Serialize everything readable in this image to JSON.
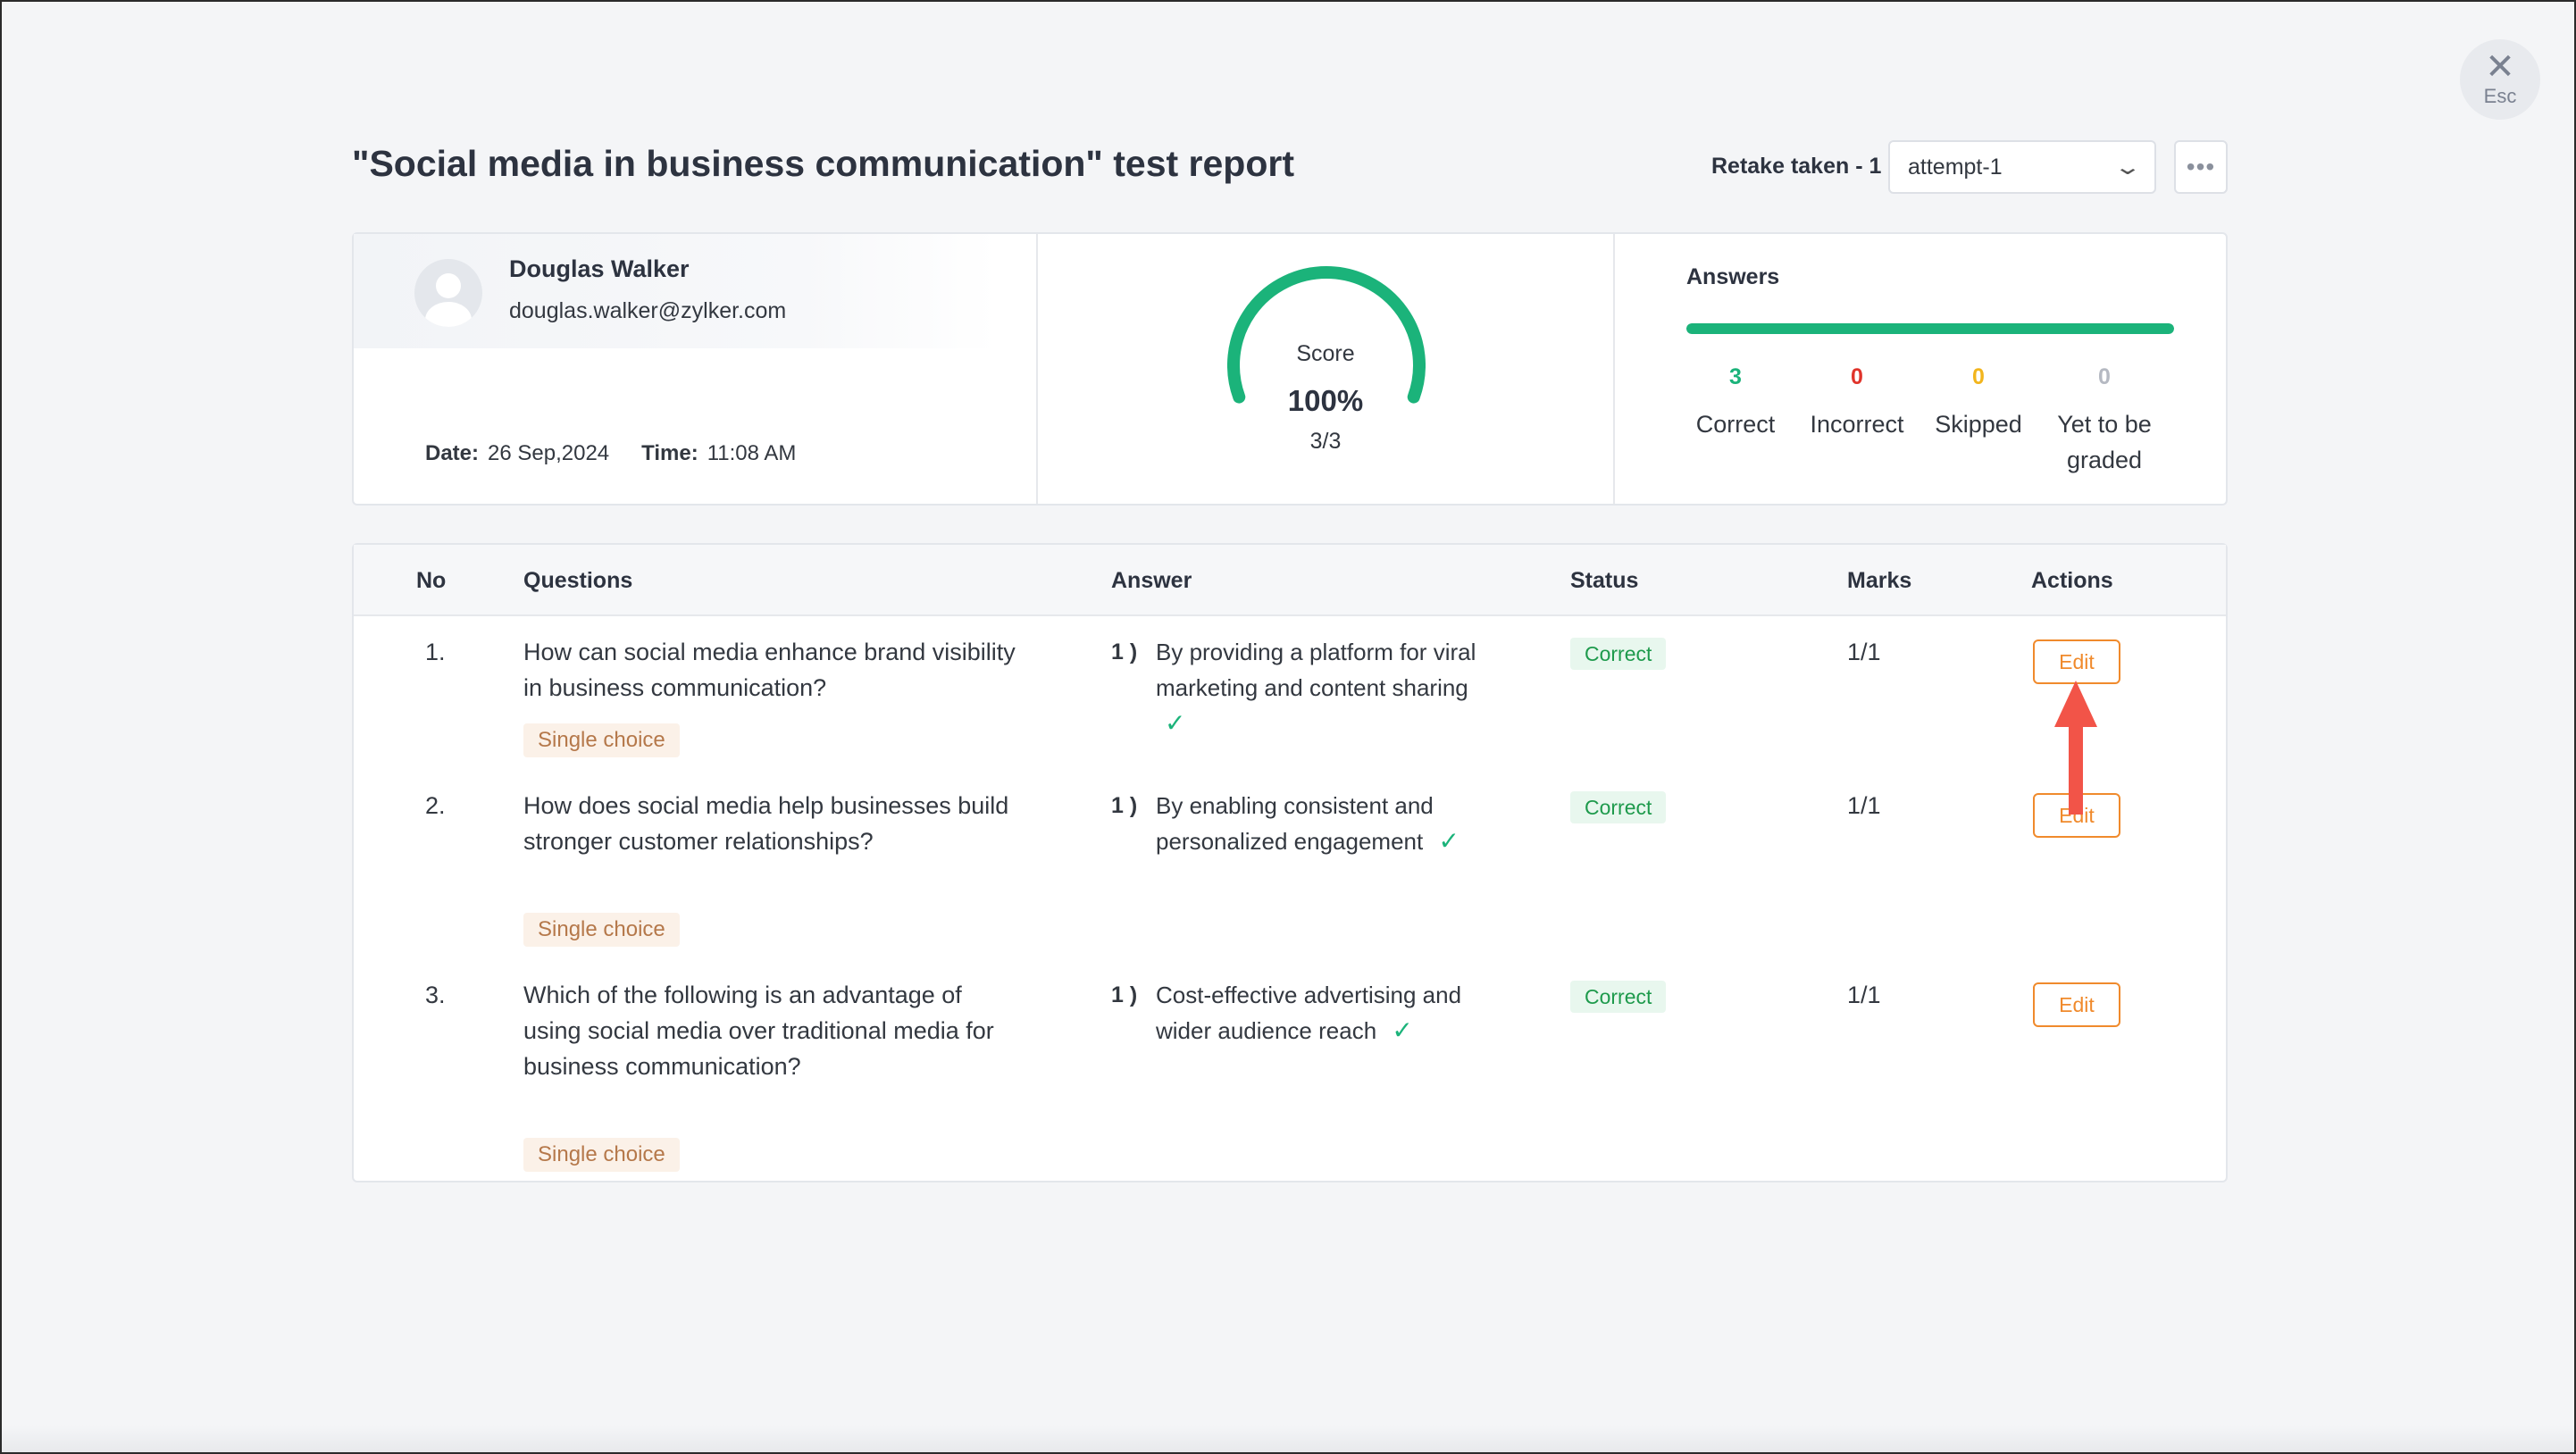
{
  "esc": {
    "label": "Esc"
  },
  "header": {
    "title": "\"Social media in business communication\" test report",
    "retake_label": "Retake taken - 1",
    "attempt_value": "attempt-1"
  },
  "user": {
    "name": "Douglas Walker",
    "email": "douglas.walker@zylker.com",
    "date_label": "Date:",
    "date": "26 Sep,2024",
    "time_label": "Time:",
    "time": "11:08 AM"
  },
  "score": {
    "label": "Score",
    "percent": "100%",
    "fraction": "3/3",
    "fill_fraction": 1.0,
    "color": "#1bb37a"
  },
  "answers": {
    "title": "Answers",
    "correct": {
      "count": "3",
      "label": "Correct",
      "color": "#1bb37a"
    },
    "incorrect": {
      "count": "0",
      "label": "Incorrect",
      "color": "#e0342b"
    },
    "skipped": {
      "count": "0",
      "label": "Skipped",
      "color": "#f2b51d"
    },
    "pending": {
      "count": "0",
      "label": "Yet to be graded",
      "color": "#b5b9c2"
    },
    "bar_fraction": 1.0
  },
  "table": {
    "headers": {
      "no": "No",
      "questions": "Questions",
      "answer": "Answer",
      "status": "Status",
      "marks": "Marks",
      "actions": "Actions"
    },
    "rows": [
      {
        "no": "1.",
        "question": "How can social media enhance brand visibility in business communication?",
        "tag": "Single choice",
        "answer_index": "1 )",
        "answer": "By providing a platform for viral marketing and content sharing",
        "status": "Correct",
        "marks": "1/1",
        "action": "Edit"
      },
      {
        "no": "2.",
        "question": "How does social media help businesses build stronger customer relationships?",
        "tag": "Single choice",
        "answer_index": "1 )",
        "answer": "By enabling consistent and personalized engagement",
        "status": "Correct",
        "marks": "1/1",
        "action": "Edit"
      },
      {
        "no": "3.",
        "question": "Which of the following is an advantage of using social media over traditional media for business communication?",
        "tag": "Single choice",
        "answer_index": "1 )",
        "answer": "Cost-effective advertising and wider audience reach",
        "status": "Correct",
        "marks": "1/1",
        "action": "Edit"
      }
    ]
  }
}
